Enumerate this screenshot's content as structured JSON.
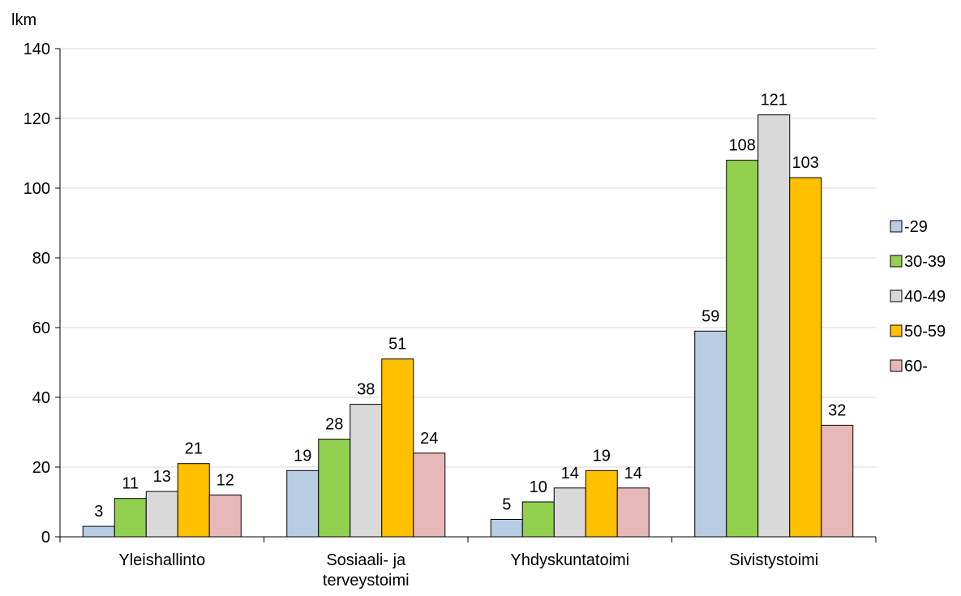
{
  "chart_data": {
    "type": "bar",
    "ylabel": "lkm",
    "ylim": [
      0,
      140
    ],
    "yticks": [
      0,
      20,
      40,
      60,
      80,
      100,
      120,
      140
    ],
    "grid": true,
    "legend_position": "right",
    "categories": [
      [
        "Yleishallinto"
      ],
      [
        "Sosiaali- ja",
        "terveystoimi"
      ],
      [
        "Yhdyskuntatoimi"
      ],
      [
        "Sivistystoimi"
      ]
    ],
    "series": [
      {
        "name": "-29",
        "color": "#b8cce4",
        "values": [
          3,
          19,
          5,
          59
        ]
      },
      {
        "name": "30-39",
        "color": "#92d050",
        "values": [
          11,
          28,
          10,
          108
        ]
      },
      {
        "name": "40-49",
        "color": "#d9d9d9",
        "values": [
          13,
          38,
          14,
          121
        ]
      },
      {
        "name": "50-59",
        "color": "#ffc000",
        "values": [
          21,
          51,
          19,
          103
        ]
      },
      {
        "name": "60-",
        "color": "#e6b9b8",
        "values": [
          12,
          24,
          14,
          32
        ]
      }
    ]
  }
}
